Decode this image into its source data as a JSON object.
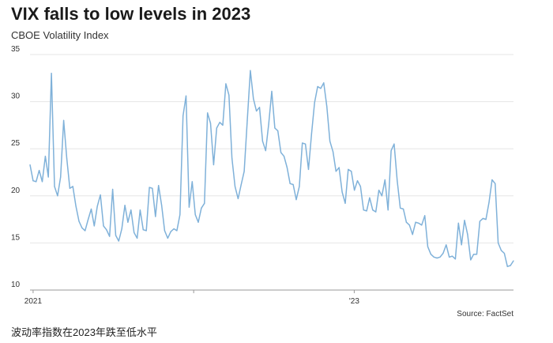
{
  "header": {
    "title": "VIX falls to low levels in 2023",
    "subtitle": "CBOE Volatility Index"
  },
  "footer": {
    "source": "Source: FactSet",
    "caption": "波动率指数在2023年跌至低水平"
  },
  "colors": {
    "line": "#7fb1d9",
    "grid": "#e6e6e6",
    "axis": "#999999"
  },
  "chart_data": {
    "type": "line",
    "title": "VIX falls to low levels in 2023",
    "subtitle": "CBOE Volatility Index",
    "xlabel": "",
    "ylabel": "",
    "ylim": [
      10,
      35
    ],
    "yticks": [
      10,
      15,
      20,
      25,
      30,
      35
    ],
    "xlim": [
      "2020-12-25",
      "2023-12-29"
    ],
    "xticks": [
      {
        "date": "2021-01-01",
        "label": "2021"
      },
      {
        "date": "2022-01-01",
        "label": ""
      },
      {
        "date": "2023-01-01",
        "label": "'23"
      }
    ],
    "grid": "horizontal",
    "legend": "none",
    "series": [
      {
        "values": [
          23.3,
          21.6,
          21.5,
          22.7,
          21.5,
          24.2,
          22.0,
          33.0,
          21.0,
          20.0,
          22.0,
          28.0,
          24.0,
          20.8,
          21.0,
          18.9,
          17.3,
          16.6,
          16.3,
          17.5,
          18.6,
          16.8,
          18.9,
          20.1,
          16.8,
          16.4,
          15.7,
          20.7,
          15.8,
          15.2,
          16.5,
          19.0,
          17.2,
          18.5,
          16.1,
          15.5,
          18.5,
          16.4,
          16.3,
          20.9,
          20.8,
          17.8,
          21.1,
          19.0,
          16.3,
          15.5,
          16.2,
          16.5,
          16.3,
          18.0,
          28.5,
          30.6,
          18.8,
          21.5,
          18.0,
          17.2,
          18.7,
          19.2,
          28.8,
          27.7,
          23.3,
          27.2,
          27.8,
          27.5,
          31.9,
          30.7,
          24.0,
          21.0,
          19.7,
          21.2,
          22.6,
          28.0,
          33.3,
          30.3,
          29.0,
          29.4,
          25.8,
          24.8,
          27.6,
          31.1,
          27.2,
          26.9,
          24.6,
          24.2,
          23.0,
          21.3,
          21.2,
          19.6,
          21.0,
          25.6,
          25.5,
          22.8,
          26.6,
          29.9,
          31.6,
          31.4,
          32.0,
          29.5,
          25.8,
          24.7,
          22.6,
          23.0,
          20.4,
          19.2,
          22.8,
          22.6,
          20.6,
          21.6,
          21.0,
          18.5,
          18.4,
          19.8,
          18.5,
          18.3,
          20.6,
          20.0,
          21.7,
          18.5,
          24.8,
          25.5,
          21.6,
          18.7,
          18.6,
          17.2,
          16.9,
          15.9,
          17.2,
          17.1,
          16.9,
          17.9,
          14.6,
          13.8,
          13.5,
          13.4,
          13.5,
          13.9,
          14.8,
          13.5,
          13.6,
          13.3,
          17.1,
          14.8,
          17.4,
          15.9,
          13.2,
          13.8,
          13.8,
          17.3,
          17.6,
          17.5,
          19.3,
          21.7,
          21.3,
          15.0,
          14.2,
          13.9,
          12.5,
          12.6,
          13.1
        ]
      }
    ]
  }
}
